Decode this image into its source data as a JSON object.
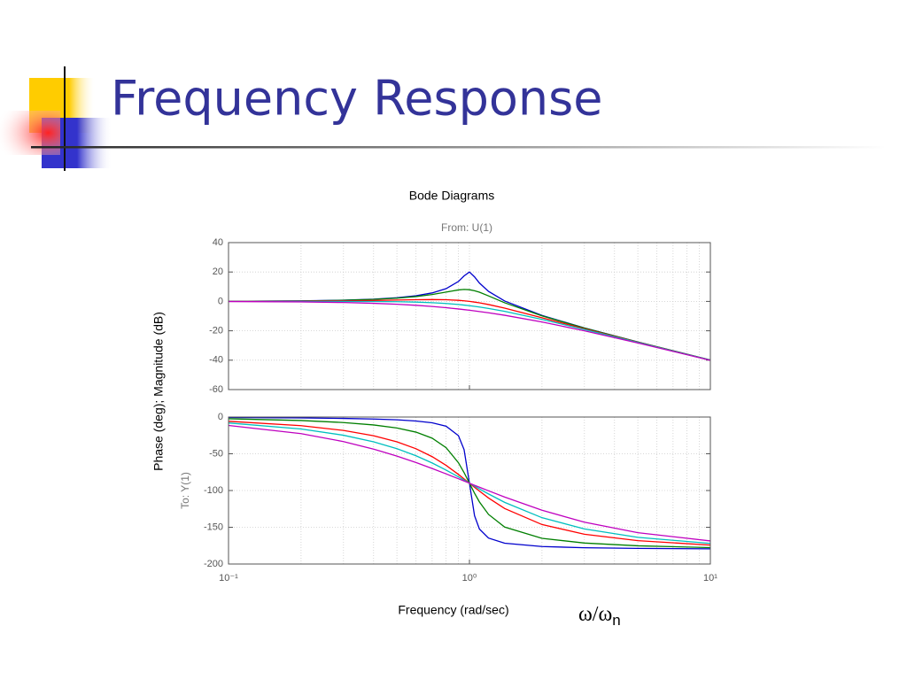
{
  "slide": {
    "title": "Frequency Response"
  },
  "chart_data": [
    {
      "type": "line",
      "title": "Bode Diagrams",
      "subtitle": "From: U(1)",
      "y_label": "Phase (deg); Magnitude (dB)",
      "output_label": "To: Y(1)",
      "xscale": "log",
      "grid": true,
      "xlim": [
        0.1,
        10
      ],
      "xticks": [
        0.1,
        1,
        10
      ],
      "xminorticks": [
        0.2,
        0.3,
        0.4,
        0.5,
        0.6,
        0.7,
        0.8,
        0.9,
        2,
        3,
        4,
        5,
        6,
        7,
        8,
        9
      ],
      "ylim": [
        -60,
        40
      ],
      "yticks": [
        -60,
        -40,
        -20,
        0,
        20,
        40
      ],
      "x": [
        0.1,
        0.2,
        0.3,
        0.4,
        0.5,
        0.6,
        0.7,
        0.8,
        0.9,
        0.95,
        1,
        1.05,
        1.1,
        1.2,
        1.4,
        2,
        3,
        5,
        10
      ],
      "series": [
        {
          "color": "#0000cc",
          "values": [
            0.09,
            0.35,
            0.81,
            1.5,
            2.48,
            3.84,
            5.77,
            8.66,
            13.55,
            17.32,
            20,
            16.67,
            12.5,
            6.82,
            0.26,
            -9.56,
            -18.07,
            -27.61,
            -39.91
          ]
        },
        {
          "color": "#007f00",
          "values": [
            0.08,
            0.32,
            0.74,
            1.36,
            2.2,
            3.3,
            4.7,
            6.35,
            7.81,
            8.13,
            7.96,
            7.28,
            6.24,
            3.73,
            -0.92,
            -9.84,
            -18.16,
            -27.63,
            -39.92
          ]
        },
        {
          "color": "#ff0000",
          "values": [
            0.04,
            0.17,
            0.37,
            0.63,
            0.9,
            1.14,
            1.25,
            1.14,
            0.73,
            0.4,
            0,
            -0.47,
            -0.98,
            -2.13,
            -4.6,
            -11.14,
            -18.63,
            -27.79,
            -39.96
          ]
        },
        {
          "color": "#00bfbf",
          "values": [
            0,
            0,
            -0.02,
            -0.08,
            -0.22,
            -0.47,
            -0.87,
            -1.41,
            -2.11,
            -2.5,
            -2.92,
            -3.37,
            -3.83,
            -4.79,
            -6.78,
            -12.26,
            -19.12,
            -27.96,
            -40
          ]
        },
        {
          "color": "#bf00bf",
          "values": [
            -0.09,
            -0.34,
            -0.75,
            -1.29,
            -1.94,
            -2.67,
            -3.46,
            -4.3,
            -5.15,
            -5.59,
            -6.02,
            -6.46,
            -6.89,
            -7.75,
            -9.43,
            -13.98,
            -20,
            -28.3,
            -40.09
          ]
        }
      ]
    },
    {
      "type": "line",
      "x_label": "Frequency (rad/sec)",
      "annotation": {
        "base": "ω/ω",
        "sub": "n"
      },
      "xscale": "log",
      "grid": true,
      "xlim": [
        0.1,
        10
      ],
      "xticks": [
        {
          "value": 0.1,
          "label": "10⁻¹"
        },
        {
          "value": 1,
          "label": "10⁰"
        },
        {
          "value": 10,
          "label": "10¹"
        }
      ],
      "xminorticks": [
        0.2,
        0.3,
        0.4,
        0.5,
        0.6,
        0.7,
        0.8,
        0.9,
        2,
        3,
        4,
        5,
        6,
        7,
        8,
        9
      ],
      "ylim": [
        -200,
        0
      ],
      "yticks": [
        -200,
        -150,
        -100,
        -50,
        0
      ],
      "x": [
        0.1,
        0.2,
        0.3,
        0.4,
        0.5,
        0.6,
        0.7,
        0.8,
        0.9,
        0.95,
        1,
        1.05,
        1.1,
        1.2,
        1.4,
        2,
        3,
        5,
        10
      ],
      "series": [
        {
          "color": "#0000cc",
          "values": [
            -0.6,
            -1.2,
            -1.9,
            -2.7,
            -3.8,
            -5.4,
            -7.8,
            -12.5,
            -25.3,
            -44.3,
            -90,
            -134.3,
            -152.4,
            -164.7,
            -171.7,
            -176.2,
            -177.9,
            -178.8,
            -179.4
          ]
        },
        {
          "color": "#007f00",
          "values": [
            -2.31,
            -4.76,
            -7.51,
            -10.78,
            -14.93,
            -20.56,
            -28.77,
            -41.63,
            -62.18,
            -75.61,
            -90,
            -103.71,
            -115.51,
            -132.51,
            -149.74,
            -165.07,
            -171.47,
            -175.24,
            -177.69
          ]
        },
        {
          "color": "#ff0000",
          "values": [
            -5.77,
            -11.77,
            -18.25,
            -25.46,
            -33.69,
            -43.15,
            -53.92,
            -65.77,
            -78.08,
            -84.14,
            -90,
            -95.58,
            -100.81,
            -110.14,
            -124.44,
            -146.31,
            -159.44,
            -168.23,
            -174.23
          ]
        },
        {
          "color": "#00bfbf",
          "values": [
            -8.05,
            -16.26,
            -24.78,
            -33.69,
            -43.03,
            -52.7,
            -62.51,
            -72.18,
            -81.42,
            -85.81,
            -90,
            -93.99,
            -97.77,
            -104.68,
            -116.1,
            -136.97,
            -152.3,
            -163.74,
            -171.95
          ]
        },
        {
          "color": "#bf00bf",
          "values": [
            -11.42,
            -22.62,
            -33.4,
            -43.6,
            -53.13,
            -61.93,
            -69.98,
            -77.32,
            -83.97,
            -87.07,
            -90,
            -92.88,
            -95.45,
            -100.39,
            -108.92,
            -126.87,
            -143.13,
            -157.38,
            -168.58
          ]
        }
      ]
    }
  ]
}
